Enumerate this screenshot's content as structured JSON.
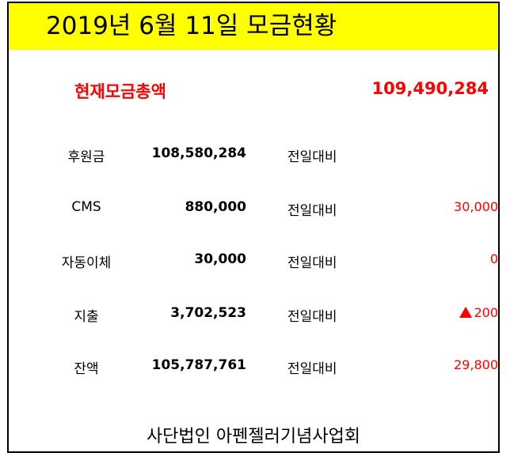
{
  "header": {
    "title": "2019년 6월 11일 모금현황"
  },
  "summary": {
    "total_label": "현재모금총액",
    "total_value": "109,490,284"
  },
  "rows": [
    {
      "label": "후원금",
      "amount": "108,580,284",
      "compare": "전일대비",
      "delta": ""
    },
    {
      "label": "CMS",
      "amount": "880,000",
      "compare": "전일대비",
      "delta": "30,000"
    },
    {
      "label": "자동이체",
      "amount": "30,000",
      "compare": "전일대비",
      "delta": "0"
    },
    {
      "label": "지출",
      "amount": "3,702,523",
      "compare": "전일대비",
      "delta": "200",
      "delta_icon": "up-triangle-icon"
    },
    {
      "label": "잔액",
      "amount": "105,787,761",
      "compare": "전일대비",
      "delta": "29,800"
    }
  ],
  "footer": {
    "organization": "사단법인 아펜젤러기념사업회"
  },
  "colors": {
    "title_background": "#ffff00",
    "accent_red": "#ff0000",
    "border": "#000000"
  }
}
